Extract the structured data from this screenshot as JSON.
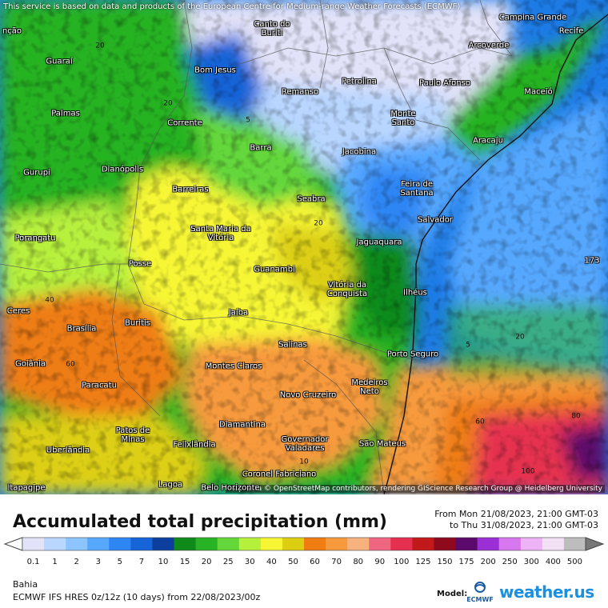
{
  "map": {
    "attribution_top": "This service is based on data and products of the European Centre for Medium-range Weather Forecasts (ECMWF)",
    "attribution_bottom": "Map data © OpenStreetMap contributors, rendering GIScience Research Group @ Heidelberg University",
    "cities": [
      {
        "name": "Campina Grande"
      },
      {
        "name": "Recife"
      },
      {
        "name": "Canto do Buriti"
      },
      {
        "name": "Arcoverde"
      },
      {
        "name": "Bom Jesus"
      },
      {
        "name": "Guaraí"
      },
      {
        "name": "Petrolina"
      },
      {
        "name": "Paulo Afonso"
      },
      {
        "name": "Maceió"
      },
      {
        "name": "Remanso"
      },
      {
        "name": "Palmas"
      },
      {
        "name": "Corrente"
      },
      {
        "name": "Monte Santo"
      },
      {
        "name": "Aracaju"
      },
      {
        "name": "Barra"
      },
      {
        "name": "Jacobina"
      },
      {
        "name": "Gurupi"
      },
      {
        "name": "Dianópolis"
      },
      {
        "name": "Feira de Santana"
      },
      {
        "name": "Barreiras"
      },
      {
        "name": "Seabra"
      },
      {
        "name": "Salvador"
      },
      {
        "name": "Porangatu"
      },
      {
        "name": "Santa Maria da Vitória"
      },
      {
        "name": "Jaguaquara"
      },
      {
        "name": "Posse"
      },
      {
        "name": "Guanambi"
      },
      {
        "name": "Vitória da Conquista"
      },
      {
        "name": "Ilhéus"
      },
      {
        "name": "Ceres"
      },
      {
        "name": "Jaíba"
      },
      {
        "name": "Brasília"
      },
      {
        "name": "Buritis"
      },
      {
        "name": "Salinas"
      },
      {
        "name": "Porto Seguro"
      },
      {
        "name": "Goiânia"
      },
      {
        "name": "Montes Claros"
      },
      {
        "name": "Medeiros Neto"
      },
      {
        "name": "Paracatu"
      },
      {
        "name": "Novo Cruzeiro"
      },
      {
        "name": "Diamantina"
      },
      {
        "name": "Patos de Minas"
      },
      {
        "name": "Governador Valadares"
      },
      {
        "name": "São Mateus"
      },
      {
        "name": "Felixlândia"
      },
      {
        "name": "Uberlândia"
      },
      {
        "name": "Coronel Fabriciano"
      },
      {
        "name": "Lagoa"
      },
      {
        "name": "Belo Horizonte"
      },
      {
        "name": "Itapagipe"
      },
      {
        "name": "nção"
      }
    ],
    "contour_labels": [
      "5",
      "10",
      "20",
      "40",
      "60",
      "80",
      "100",
      "173"
    ]
  },
  "legend": {
    "title": "Accumulated total precipitation (mm)",
    "from": "From Mon 21/08/2023, 21:00 GMT-03",
    "to": "to Thu 31/08/2023, 21:00 GMT-03",
    "ticks": [
      "0.1",
      "1",
      "2",
      "3",
      "5",
      "7",
      "10",
      "15",
      "20",
      "25",
      "30",
      "40",
      "50",
      "60",
      "70",
      "80",
      "90",
      "100",
      "125",
      "150",
      "175",
      "200",
      "250",
      "300",
      "400",
      "500"
    ],
    "colors": [
      "#e2e2f8",
      "#b8d6ff",
      "#8cc4ff",
      "#56a8ff",
      "#2e86f5",
      "#1564d8",
      "#0c3f9e",
      "#118a1c",
      "#27b324",
      "#63d73a",
      "#b7f03c",
      "#f6f634",
      "#dccf12",
      "#ef7d12",
      "#f79a3d",
      "#f6b17d",
      "#f06680",
      "#e6304f",
      "#c21a1a",
      "#8e0a1f",
      "#5b0a6b",
      "#9a2fd6",
      "#d677f0",
      "#eeb2f6",
      "#f2e0f4",
      "#bdbdbd"
    ]
  },
  "footer": {
    "region": "Bahia",
    "model": "ECMWF IFS HRES 0z/12z (10 days) from  22/08/2023/00z",
    "model_label": "Model:",
    "ecmwf_logo_text": "ECMWF",
    "brand": "weather.us"
  }
}
